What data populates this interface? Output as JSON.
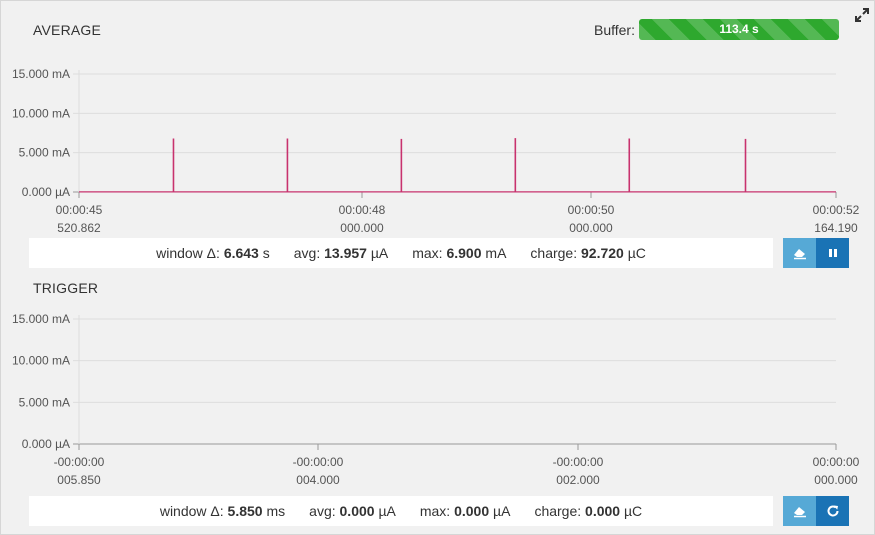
{
  "average": {
    "title": "AVERAGE",
    "buffer_label": "Buffer:",
    "buffer_value": "113.4 s",
    "y_ticks": [
      "15.000 mA",
      "10.000 mA",
      "5.000 mA",
      "0.000 µA"
    ],
    "x_ticks": [
      {
        "time": "00:00:45",
        "sub": "520.862"
      },
      {
        "time": "00:00:48",
        "sub": "000.000"
      },
      {
        "time": "00:00:50",
        "sub": "000.000"
      },
      {
        "time": "00:00:52",
        "sub": "164.190"
      }
    ],
    "stats": {
      "window_label": "window Δ:",
      "window_value": "6.643",
      "window_unit": "s",
      "avg_label": "avg:",
      "avg_value": "13.957",
      "avg_unit": "µA",
      "max_label": "max:",
      "max_value": "6.900",
      "max_unit": "mA",
      "charge_label": "charge:",
      "charge_value": "92.720",
      "charge_unit": "µC"
    },
    "buttons": {
      "clear": "eraser-icon",
      "pause": "pause-icon"
    }
  },
  "trigger": {
    "title": "TRIGGER",
    "y_ticks": [
      "15.000 mA",
      "10.000 mA",
      "5.000 mA",
      "0.000 µA"
    ],
    "x_ticks": [
      {
        "time": "-00:00:00",
        "sub": "005.850"
      },
      {
        "time": "-00:00:00",
        "sub": "004.000"
      },
      {
        "time": "-00:00:00",
        "sub": "002.000"
      },
      {
        "time": "00:00:00",
        "sub": "000.000"
      }
    ],
    "stats": {
      "window_label": "window Δ:",
      "window_value": "5.850",
      "window_unit": "ms",
      "avg_label": "avg:",
      "avg_value": "0.000",
      "avg_unit": "µA",
      "max_label": "max:",
      "max_value": "0.000",
      "max_unit": "µA",
      "charge_label": "charge:",
      "charge_value": "0.000",
      "charge_unit": "µC"
    },
    "buttons": {
      "clear": "eraser-icon",
      "refresh": "refresh-icon"
    }
  },
  "colors": {
    "trace": "#c8326e",
    "buffer": "#2ea82e",
    "button_light": "#56a9d6",
    "button_dark": "#1a73b5",
    "grid": "#dddddd"
  },
  "chart_data": [
    {
      "type": "line",
      "title": "AVERAGE",
      "y_unit": "mA",
      "ylim": [
        0,
        15
      ],
      "x_range_s": [
        45.520862,
        52.16419
      ],
      "x_ticks": [
        "00:00:45 520.862",
        "00:00:48 000.000",
        "00:00:50 000.000",
        "00:00:52 164.190"
      ],
      "spikes": [
        {
          "t": 46.35,
          "value": 6.8
        },
        {
          "t": 47.35,
          "value": 6.8
        },
        {
          "t": 48.35,
          "value": 6.75
        },
        {
          "t": 49.35,
          "value": 6.85
        },
        {
          "t": 50.35,
          "value": 6.8
        },
        {
          "t": 51.37,
          "value": 6.75
        }
      ],
      "baseline": 0.014,
      "grid": true
    },
    {
      "type": "line",
      "title": "TRIGGER",
      "y_unit": "mA",
      "ylim": [
        0,
        15
      ],
      "x_range_ms": [
        -5.85,
        0
      ],
      "x_ticks": [
        "-00:00:00 005.850",
        "-00:00:00 004.000",
        "-00:00:00 002.000",
        "00:00:00 000.000"
      ],
      "spikes": [],
      "grid": true
    }
  ]
}
